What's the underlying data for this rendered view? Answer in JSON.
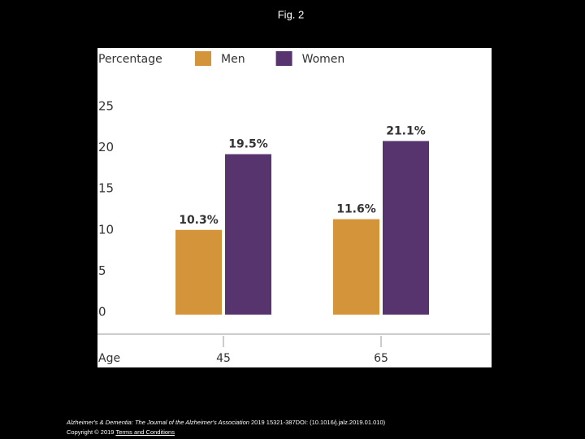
{
  "figure_title": "Fig. 2",
  "chart_data": {
    "type": "bar",
    "y_label": "Percentage",
    "x_label": "Age",
    "categories": [
      "45",
      "65"
    ],
    "series": [
      {
        "name": "Men",
        "color": "#d4943a",
        "values": [
          10.3,
          11.6
        ],
        "value_labels": [
          "10.3%",
          "11.6%"
        ]
      },
      {
        "name": "Women",
        "color": "#58346f",
        "values": [
          19.5,
          21.1
        ],
        "value_labels": [
          "19.5%",
          "21.1%"
        ]
      }
    ],
    "ylim": [
      0,
      25
    ],
    "yticks": [
      0,
      5,
      10,
      15,
      20,
      25
    ],
    "grid": false,
    "legend": "top"
  },
  "footer": {
    "journal": "Alzheimer's & Dementia: The Journal of the Alzheimer's Association",
    "details": "2019 15321-387DOI: (10.1016/j.jalz.2019.01.010)",
    "copyright": "Copyright © 2019",
    "link": "Terms and Conditions"
  }
}
